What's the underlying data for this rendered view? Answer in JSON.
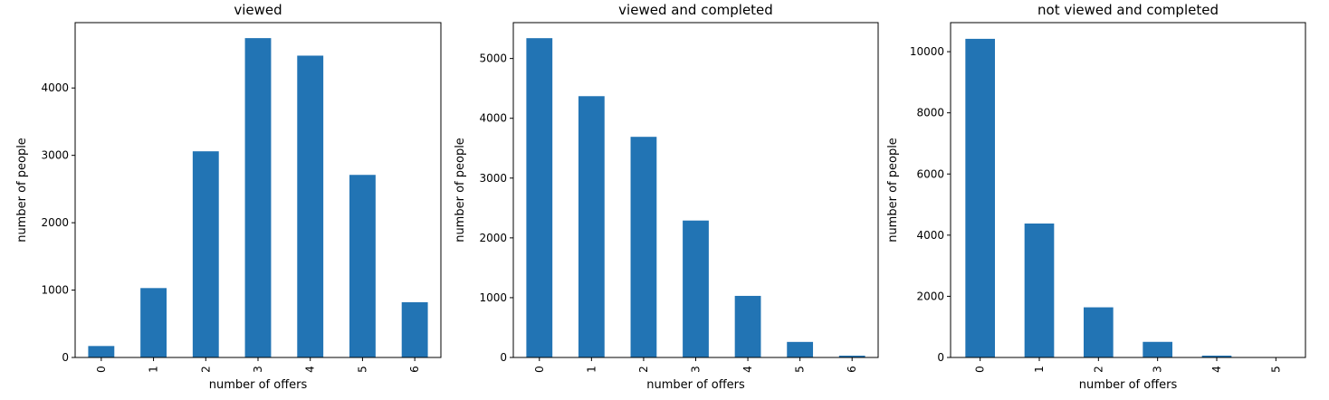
{
  "colors": {
    "bar": "#2274b4",
    "axis": "#000000",
    "background": "#ffffff"
  },
  "chart_data": [
    {
      "type": "bar",
      "title": "viewed",
      "xlabel": "number of offers",
      "ylabel": "number of people",
      "categories": [
        "0",
        "1",
        "2",
        "3",
        "4",
        "5",
        "6"
      ],
      "values": [
        170,
        1030,
        3060,
        4740,
        4480,
        2710,
        820
      ],
      "ylim": [
        0,
        4970
      ],
      "yticks": [
        0,
        1000,
        2000,
        3000,
        4000
      ],
      "grid": false,
      "legend": "none"
    },
    {
      "type": "bar",
      "title": "viewed and completed",
      "xlabel": "number of offers",
      "ylabel": "number of people",
      "categories": [
        "0",
        "1",
        "2",
        "3",
        "4",
        "5",
        "6"
      ],
      "values": [
        5340,
        4370,
        3690,
        2290,
        1030,
        260,
        30
      ],
      "ylim": [
        0,
        5600
      ],
      "yticks": [
        0,
        1000,
        2000,
        3000,
        4000,
        5000
      ],
      "grid": false,
      "legend": "none"
    },
    {
      "type": "bar",
      "title": "not viewed and completed",
      "xlabel": "number of offers",
      "ylabel": "number of people",
      "categories": [
        "0",
        "1",
        "2",
        "3",
        "4",
        "5"
      ],
      "values": [
        10420,
        4380,
        1640,
        510,
        60,
        10
      ],
      "ylim": [
        0,
        10950
      ],
      "yticks": [
        0,
        2000,
        4000,
        6000,
        8000,
        10000
      ],
      "grid": false,
      "legend": "none"
    }
  ]
}
